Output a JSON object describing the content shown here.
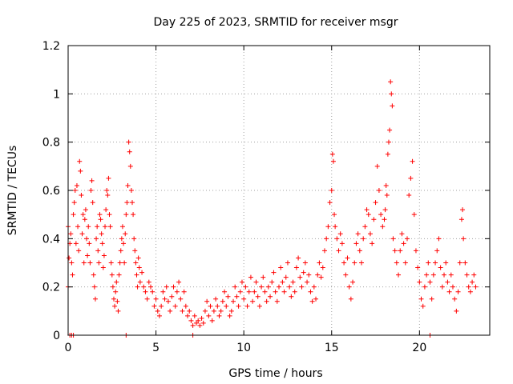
{
  "chart_data": {
    "type": "scatter",
    "title": "Day 225 of 2023, SRMTID for receiver msgr",
    "xlabel": "GPS time / hours",
    "ylabel": "SRMTID / TECUs",
    "xlim": [
      0,
      24
    ],
    "ylim": [
      0,
      1.2
    ],
    "x_ticks": [
      0,
      5,
      10,
      15,
      20
    ],
    "y_ticks": [
      0,
      0.2,
      0.4,
      0.6,
      0.8,
      1,
      1.2
    ],
    "x_tick_labels": [
      "0",
      "5",
      "10",
      "15",
      "20"
    ],
    "y_tick_labels": [
      "0",
      "0.2",
      "0.4",
      "0.6",
      "0.8",
      "1",
      "1.2"
    ],
    "grid": true,
    "marker": "+",
    "series": [
      {
        "name": "msgr",
        "color": "#ff0000",
        "points": [
          [
            0.0,
            0.45
          ],
          [
            0.0,
            0.2
          ],
          [
            0.05,
            0.32
          ],
          [
            0.1,
            0.38
          ],
          [
            0.15,
            0.42
          ],
          [
            0.2,
            0.3
          ],
          [
            0.25,
            0.25
          ],
          [
            0.3,
            0.5
          ],
          [
            0.35,
            0.55
          ],
          [
            0.4,
            0.6
          ],
          [
            0.45,
            0.38
          ],
          [
            0.5,
            0.62
          ],
          [
            0.55,
            0.45
          ],
          [
            0.6,
            0.35
          ],
          [
            0.65,
            0.72
          ],
          [
            0.7,
            0.68
          ],
          [
            0.75,
            0.58
          ],
          [
            0.8,
            0.42
          ],
          [
            0.85,
            0.5
          ],
          [
            0.9,
            0.3
          ],
          [
            0.95,
            0.48
          ],
          [
            1.0,
            0.52
          ],
          [
            1.05,
            0.4
          ],
          [
            1.1,
            0.33
          ],
          [
            1.15,
            0.45
          ],
          [
            1.2,
            0.38
          ],
          [
            1.25,
            0.3
          ],
          [
            1.3,
            0.6
          ],
          [
            1.35,
            0.64
          ],
          [
            1.4,
            0.55
          ],
          [
            1.45,
            0.25
          ],
          [
            1.5,
            0.2
          ],
          [
            1.55,
            0.15
          ],
          [
            1.6,
            0.4
          ],
          [
            1.65,
            0.45
          ],
          [
            1.7,
            0.35
          ],
          [
            1.75,
            0.3
          ],
          [
            1.8,
            0.5
          ],
          [
            1.85,
            0.48
          ],
          [
            1.9,
            0.42
          ],
          [
            1.95,
            0.38
          ],
          [
            2.0,
            0.28
          ],
          [
            2.05,
            0.33
          ],
          [
            2.1,
            0.45
          ],
          [
            2.15,
            0.52
          ],
          [
            2.2,
            0.6
          ],
          [
            2.25,
            0.58
          ],
          [
            2.3,
            0.65
          ],
          [
            2.35,
            0.5
          ],
          [
            2.4,
            0.45
          ],
          [
            2.45,
            0.3
          ],
          [
            2.5,
            0.25
          ],
          [
            2.55,
            0.2
          ],
          [
            2.6,
            0.15
          ],
          [
            2.65,
            0.12
          ],
          [
            2.7,
            0.18
          ],
          [
            2.75,
            0.22
          ],
          [
            2.8,
            0.14
          ],
          [
            2.85,
            0.1
          ],
          [
            2.9,
            0.25
          ],
          [
            2.95,
            0.3
          ],
          [
            3.0,
            0.35
          ],
          [
            3.05,
            0.4
          ],
          [
            3.1,
            0.45
          ],
          [
            3.15,
            0.38
          ],
          [
            3.2,
            0.3
          ],
          [
            3.25,
            0.42
          ],
          [
            3.3,
            0.5
          ],
          [
            3.35,
            0.55
          ],
          [
            3.4,
            0.62
          ],
          [
            3.45,
            0.8
          ],
          [
            3.5,
            0.76
          ],
          [
            3.55,
            0.7
          ],
          [
            3.6,
            0.6
          ],
          [
            3.65,
            0.55
          ],
          [
            3.7,
            0.5
          ],
          [
            3.75,
            0.4
          ],
          [
            3.8,
            0.35
          ],
          [
            3.85,
            0.3
          ],
          [
            3.9,
            0.25
          ],
          [
            3.95,
            0.2
          ],
          [
            4.0,
            0.32
          ],
          [
            4.05,
            0.28
          ],
          [
            4.1,
            0.22
          ],
          [
            4.2,
            0.26
          ],
          [
            4.3,
            0.2
          ],
          [
            4.4,
            0.18
          ],
          [
            4.5,
            0.15
          ],
          [
            4.6,
            0.22
          ],
          [
            4.7,
            0.2
          ],
          [
            4.8,
            0.18
          ],
          [
            4.9,
            0.12
          ],
          [
            5.0,
            0.15
          ],
          [
            5.1,
            0.1
          ],
          [
            5.2,
            0.08
          ],
          [
            5.3,
            0.12
          ],
          [
            5.4,
            0.18
          ],
          [
            5.5,
            0.15
          ],
          [
            5.6,
            0.2
          ],
          [
            5.7,
            0.14
          ],
          [
            5.8,
            0.1
          ],
          [
            5.9,
            0.16
          ],
          [
            6.0,
            0.2
          ],
          [
            6.1,
            0.12
          ],
          [
            6.2,
            0.18
          ],
          [
            6.3,
            0.22
          ],
          [
            6.4,
            0.15
          ],
          [
            6.5,
            0.1
          ],
          [
            6.6,
            0.18
          ],
          [
            6.7,
            0.12
          ],
          [
            6.8,
            0.08
          ],
          [
            6.9,
            0.1
          ],
          [
            7.0,
            0.06
          ],
          [
            7.1,
            0.04
          ],
          [
            7.2,
            0.08
          ],
          [
            7.3,
            0.05
          ],
          [
            7.4,
            0.06
          ],
          [
            7.5,
            0.04
          ],
          [
            7.6,
            0.07
          ],
          [
            7.7,
            0.05
          ],
          [
            7.8,
            0.1
          ],
          [
            7.9,
            0.14
          ],
          [
            8.0,
            0.08
          ],
          [
            8.1,
            0.12
          ],
          [
            8.2,
            0.06
          ],
          [
            8.3,
            0.1
          ],
          [
            8.4,
            0.15
          ],
          [
            8.5,
            0.12
          ],
          [
            8.6,
            0.08
          ],
          [
            8.7,
            0.1
          ],
          [
            8.8,
            0.14
          ],
          [
            8.9,
            0.18
          ],
          [
            9.0,
            0.12
          ],
          [
            9.1,
            0.16
          ],
          [
            9.2,
            0.08
          ],
          [
            9.3,
            0.1
          ],
          [
            9.4,
            0.14
          ],
          [
            9.5,
            0.2
          ],
          [
            9.6,
            0.16
          ],
          [
            9.7,
            0.12
          ],
          [
            9.8,
            0.18
          ],
          [
            9.9,
            0.22
          ],
          [
            10.0,
            0.15
          ],
          [
            10.1,
            0.2
          ],
          [
            10.2,
            0.12
          ],
          [
            10.3,
            0.18
          ],
          [
            10.4,
            0.24
          ],
          [
            10.5,
            0.14
          ],
          [
            10.6,
            0.18
          ],
          [
            10.7,
            0.22
          ],
          [
            10.8,
            0.16
          ],
          [
            10.9,
            0.12
          ],
          [
            11.0,
            0.2
          ],
          [
            11.1,
            0.24
          ],
          [
            11.2,
            0.18
          ],
          [
            11.3,
            0.14
          ],
          [
            11.4,
            0.2
          ],
          [
            11.5,
            0.16
          ],
          [
            11.6,
            0.22
          ],
          [
            11.7,
            0.26
          ],
          [
            11.8,
            0.18
          ],
          [
            11.9,
            0.14
          ],
          [
            12.0,
            0.2
          ],
          [
            12.1,
            0.28
          ],
          [
            12.2,
            0.22
          ],
          [
            12.3,
            0.18
          ],
          [
            12.4,
            0.24
          ],
          [
            12.5,
            0.3
          ],
          [
            12.6,
            0.2
          ],
          [
            12.7,
            0.16
          ],
          [
            12.8,
            0.22
          ],
          [
            12.9,
            0.18
          ],
          [
            13.0,
            0.28
          ],
          [
            13.1,
            0.32
          ],
          [
            13.2,
            0.24
          ],
          [
            13.3,
            0.2
          ],
          [
            13.4,
            0.26
          ],
          [
            13.5,
            0.3
          ],
          [
            13.6,
            0.22
          ],
          [
            13.7,
            0.25
          ],
          [
            13.8,
            0.18
          ],
          [
            13.9,
            0.14
          ],
          [
            14.0,
            0.2
          ],
          [
            14.1,
            0.15
          ],
          [
            14.2,
            0.25
          ],
          [
            14.3,
            0.3
          ],
          [
            14.4,
            0.24
          ],
          [
            14.5,
            0.28
          ],
          [
            14.6,
            0.35
          ],
          [
            14.7,
            0.4
          ],
          [
            14.8,
            0.45
          ],
          [
            14.9,
            0.55
          ],
          [
            15.0,
            0.6
          ],
          [
            15.05,
            0.75
          ],
          [
            15.1,
            0.72
          ],
          [
            15.15,
            0.5
          ],
          [
            15.2,
            0.45
          ],
          [
            15.3,
            0.4
          ],
          [
            15.4,
            0.35
          ],
          [
            15.5,
            0.42
          ],
          [
            15.6,
            0.38
          ],
          [
            15.7,
            0.3
          ],
          [
            15.8,
            0.25
          ],
          [
            15.9,
            0.32
          ],
          [
            16.0,
            0.2
          ],
          [
            16.1,
            0.15
          ],
          [
            16.2,
            0.22
          ],
          [
            16.3,
            0.3
          ],
          [
            16.4,
            0.38
          ],
          [
            16.5,
            0.42
          ],
          [
            16.6,
            0.35
          ],
          [
            16.7,
            0.3
          ],
          [
            16.8,
            0.4
          ],
          [
            16.9,
            0.45
          ],
          [
            17.0,
            0.52
          ],
          [
            17.1,
            0.5
          ],
          [
            17.2,
            0.42
          ],
          [
            17.3,
            0.38
          ],
          [
            17.4,
            0.48
          ],
          [
            17.5,
            0.55
          ],
          [
            17.6,
            0.7
          ],
          [
            17.7,
            0.6
          ],
          [
            17.8,
            0.5
          ],
          [
            17.9,
            0.45
          ],
          [
            18.0,
            0.48
          ],
          [
            18.05,
            0.52
          ],
          [
            18.1,
            0.62
          ],
          [
            18.15,
            0.58
          ],
          [
            18.2,
            0.75
          ],
          [
            18.25,
            0.8
          ],
          [
            18.3,
            0.85
          ],
          [
            18.35,
            1.05
          ],
          [
            18.4,
            1.0
          ],
          [
            18.45,
            0.95
          ],
          [
            18.5,
            0.4
          ],
          [
            18.6,
            0.35
          ],
          [
            18.7,
            0.3
          ],
          [
            18.8,
            0.25
          ],
          [
            18.9,
            0.35
          ],
          [
            19.0,
            0.42
          ],
          [
            19.1,
            0.38
          ],
          [
            19.2,
            0.3
          ],
          [
            19.3,
            0.4
          ],
          [
            19.4,
            0.58
          ],
          [
            19.5,
            0.65
          ],
          [
            19.6,
            0.72
          ],
          [
            19.7,
            0.5
          ],
          [
            19.8,
            0.35
          ],
          [
            19.9,
            0.28
          ],
          [
            20.0,
            0.22
          ],
          [
            20.1,
            0.15
          ],
          [
            20.2,
            0.12
          ],
          [
            20.3,
            0.2
          ],
          [
            20.4,
            0.25
          ],
          [
            20.5,
            0.3
          ],
          [
            20.6,
            0.22
          ],
          [
            20.7,
            0.15
          ],
          [
            20.8,
            0.25
          ],
          [
            20.9,
            0.3
          ],
          [
            21.0,
            0.35
          ],
          [
            21.1,
            0.4
          ],
          [
            21.2,
            0.28
          ],
          [
            21.3,
            0.2
          ],
          [
            21.4,
            0.25
          ],
          [
            21.5,
            0.3
          ],
          [
            21.6,
            0.22
          ],
          [
            21.7,
            0.18
          ],
          [
            21.8,
            0.25
          ],
          [
            21.9,
            0.2
          ],
          [
            22.0,
            0.15
          ],
          [
            22.1,
            0.1
          ],
          [
            22.2,
            0.18
          ],
          [
            22.3,
            0.3
          ],
          [
            22.4,
            0.48
          ],
          [
            22.45,
            0.52
          ],
          [
            22.5,
            0.4
          ],
          [
            22.6,
            0.3
          ],
          [
            22.7,
            0.25
          ],
          [
            22.8,
            0.2
          ],
          [
            22.9,
            0.18
          ],
          [
            23.0,
            0.22
          ],
          [
            23.1,
            0.25
          ],
          [
            23.2,
            0.2
          ],
          [
            0.1,
            0.0
          ],
          [
            0.2,
            0.0
          ],
          [
            0.3,
            0.0
          ],
          [
            3.3,
            0.0
          ],
          [
            7.1,
            0.0
          ],
          [
            20.6,
            0.0
          ]
        ]
      }
    ]
  }
}
